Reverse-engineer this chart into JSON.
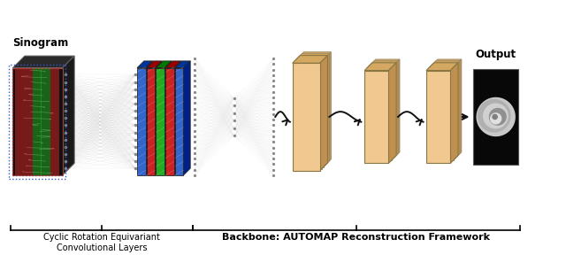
{
  "title_sinogram": "Sinogram",
  "title_output": "Output",
  "label_cyclic": "Cyclic Rotation Equivariant\nConvolutional Layers",
  "label_backbone": "Backbone: AUTOMAP Reconstruction Framework",
  "bg_color": "#ffffff",
  "peach": "#f0c890",
  "peach_top": "#d4a860",
  "peach_right": "#c09050",
  "green_patch": "#55cc22",
  "blue_strip": "#3366cc",
  "figsize": [
    6.4,
    2.88
  ],
  "dpi": 100
}
